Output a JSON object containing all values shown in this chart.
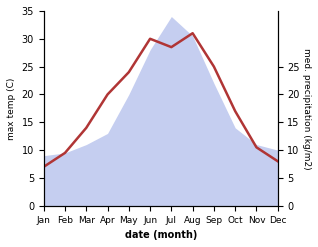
{
  "months": [
    "Jan",
    "Feb",
    "Mar",
    "Apr",
    "May",
    "Jun",
    "Jul",
    "Aug",
    "Sep",
    "Oct",
    "Nov",
    "Dec"
  ],
  "month_x": [
    1,
    2,
    3,
    4,
    5,
    6,
    7,
    8,
    9,
    10,
    11,
    12
  ],
  "temp": [
    7,
    9.5,
    14,
    20,
    24,
    30,
    28.5,
    31,
    25,
    17,
    10.5,
    8
  ],
  "precip": [
    9,
    9.5,
    11,
    13,
    20,
    28,
    34,
    30.5,
    22,
    14,
    11,
    10
  ],
  "temp_color": "#b03535",
  "precip_fill_color": "#c5cef0",
  "temp_ylim": [
    0,
    35
  ],
  "precip_ylim": [
    0,
    35
  ],
  "left_yticks": [
    0,
    5,
    10,
    15,
    20,
    25,
    30,
    35
  ],
  "right_yticks": [
    0,
    5,
    10,
    15,
    20,
    25
  ],
  "right_ytick_labels": [
    "0",
    "5",
    "10",
    "15",
    "20",
    "25"
  ],
  "right_ylim": [
    0,
    35
  ],
  "xlabel": "date (month)",
  "ylabel_left": "max temp (C)",
  "ylabel_right": "med. precipitation (kg/m2)",
  "bg_color": "#ffffff",
  "line_width": 1.8
}
